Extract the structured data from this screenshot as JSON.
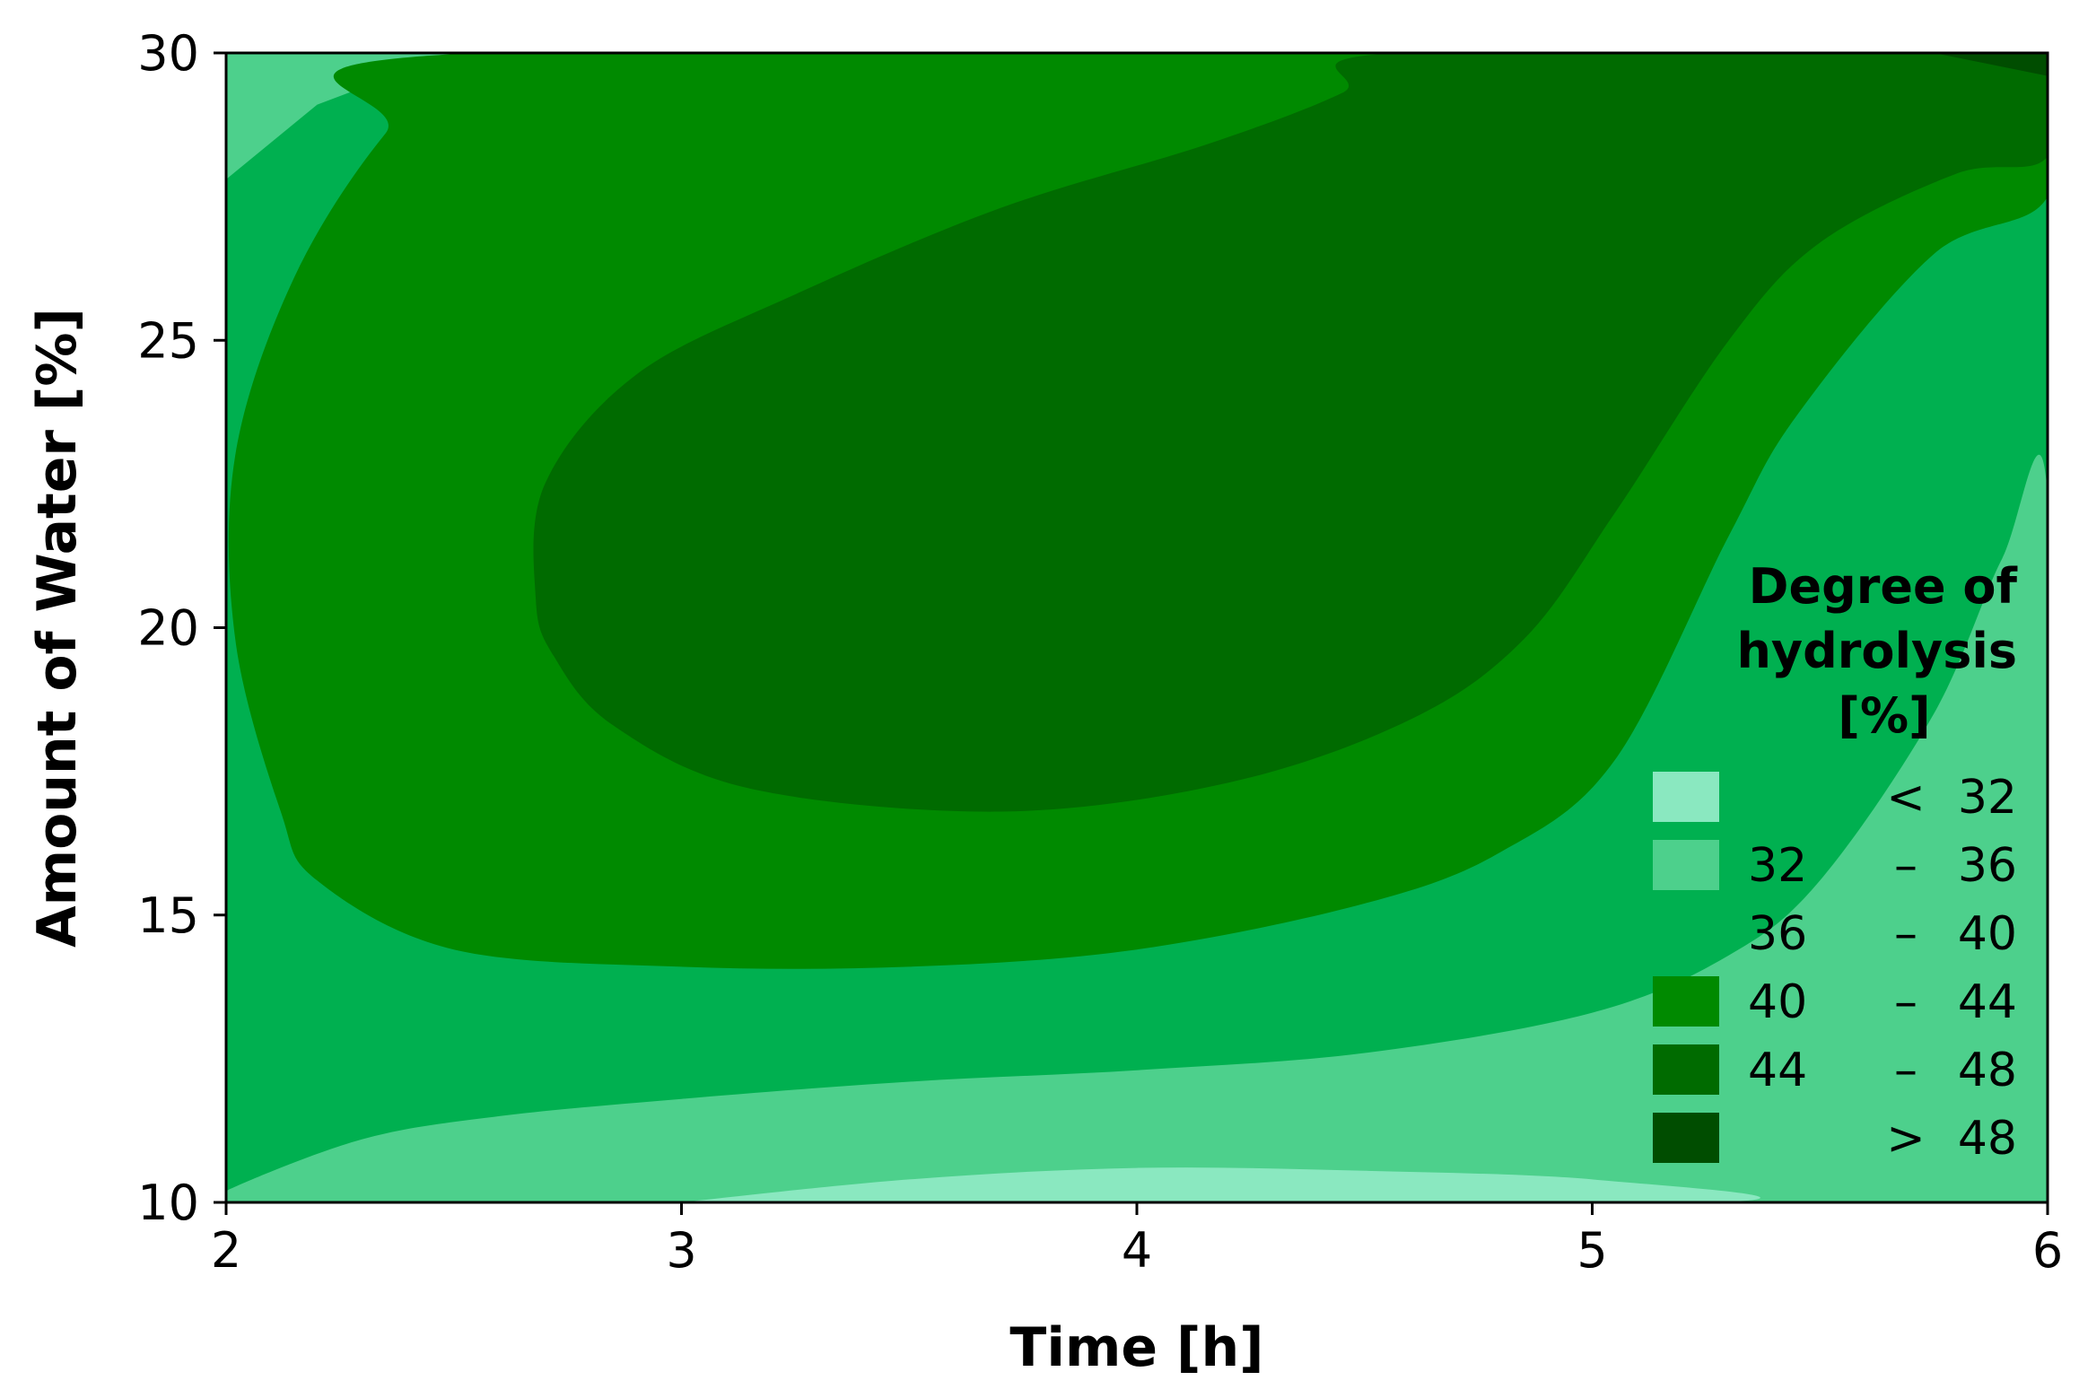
{
  "chart_data": {
    "type": "contour",
    "xlabel": "Time  [h]",
    "ylabel": "Amount of Water  [%]",
    "xlim": [
      2,
      6
    ],
    "ylim": [
      10,
      30
    ],
    "x_ticks": [
      "2",
      "3",
      "4",
      "5",
      "6"
    ],
    "y_ticks": [
      "10",
      "15",
      "20",
      "25",
      "30"
    ],
    "grid": false,
    "legend": {
      "title": [
        "Degree of",
        "hydrolysis",
        "[%]"
      ],
      "placement": "bottom-right",
      "entries": [
        {
          "low": "",
          "sep": "<",
          "high": "32",
          "color": "#8ae8c0"
        },
        {
          "low": "32",
          "sep": "–",
          "high": "36",
          "color": "#4dd08c"
        },
        {
          "low": "36",
          "sep": "–",
          "high": "40",
          "color": "#00b050"
        },
        {
          "low": "40",
          "sep": "–",
          "high": "44",
          "color": "#008a00"
        },
        {
          "low": "44",
          "sep": "–",
          "high": "48",
          "color": "#006b00"
        },
        {
          "low": "",
          "sep": ">",
          "high": "48",
          "color": "#004d00"
        }
      ]
    },
    "contour_levels": [
      32,
      36,
      40,
      44,
      48
    ],
    "regions": [
      {
        "level": "36–40",
        "color": "#00b050",
        "points": [
          [
            2,
            10
          ],
          [
            6,
            10
          ],
          [
            6,
            30
          ],
          [
            2,
            30
          ]
        ]
      },
      {
        "level": "32–36",
        "color": "#4dd08c",
        "points": [
          [
            2,
            10.2
          ],
          [
            2.3,
            11.1
          ],
          [
            2.6,
            11.5
          ],
          [
            3,
            11.8
          ],
          [
            3.5,
            12.1
          ],
          [
            4,
            12.3
          ],
          [
            4.5,
            12.6
          ],
          [
            5,
            13.3
          ],
          [
            5.3,
            14.3
          ],
          [
            5.5,
            15.6
          ],
          [
            5.75,
            18.5
          ],
          [
            5.9,
            21.2
          ],
          [
            6,
            22.3
          ],
          [
            6,
            10
          ],
          [
            2,
            10
          ]
        ]
      },
      {
        "level": "32–36",
        "color": "#4dd08c",
        "points": [
          [
            2,
            27.8
          ],
          [
            2.2,
            29.1
          ],
          [
            2.5,
            30
          ],
          [
            2,
            30
          ]
        ]
      },
      {
        "level": "<32",
        "color": "#8ae8c0",
        "points": [
          [
            3,
            10
          ],
          [
            3.5,
            10.4
          ],
          [
            4,
            10.6
          ],
          [
            4.5,
            10.55
          ],
          [
            5,
            10.4
          ],
          [
            5.25,
            10
          ],
          [
            3,
            10
          ]
        ]
      },
      {
        "level": "40–44",
        "color": "#008a00",
        "points": [
          [
            2.12,
            16.8
          ],
          [
            2.2,
            15.6
          ],
          [
            2.5,
            14.4
          ],
          [
            3,
            14.1
          ],
          [
            3.5,
            14.1
          ],
          [
            4,
            14.4
          ],
          [
            4.5,
            15.2
          ],
          [
            4.8,
            16.1
          ],
          [
            5.05,
            17.7
          ],
          [
            5.3,
            21.6
          ],
          [
            5.45,
            23.7
          ],
          [
            5.75,
            26.5
          ],
          [
            6,
            27.5
          ],
          [
            6,
            30
          ],
          [
            2.55,
            30
          ],
          [
            2.35,
            28.6
          ],
          [
            2.15,
            26.1
          ],
          [
            2.02,
            23
          ],
          [
            2.02,
            19.8
          ]
        ]
      },
      {
        "level": "44–48",
        "color": "#006b00",
        "points": [
          [
            2.68,
            20.5
          ],
          [
            2.72,
            19.5
          ],
          [
            2.85,
            18.3
          ],
          [
            3.15,
            17.2
          ],
          [
            3.7,
            16.8
          ],
          [
            4.2,
            17.3
          ],
          [
            4.6,
            18.4
          ],
          [
            4.85,
            19.8
          ],
          [
            5.05,
            22
          ],
          [
            5.3,
            25
          ],
          [
            5.5,
            26.7
          ],
          [
            5.8,
            27.9
          ],
          [
            6,
            28.2
          ],
          [
            6,
            30
          ],
          [
            4.57,
            30
          ],
          [
            4.45,
            29.3
          ],
          [
            4.15,
            28.4
          ],
          [
            3.7,
            27.3
          ],
          [
            3.25,
            25.8
          ],
          [
            2.9,
            24.4
          ],
          [
            2.7,
            22.5
          ]
        ]
      },
      {
        "level": ">48",
        "color": "#004d00",
        "points": [
          [
            5.75,
            30
          ],
          [
            6,
            29.6
          ],
          [
            6,
            30
          ]
        ]
      }
    ]
  }
}
